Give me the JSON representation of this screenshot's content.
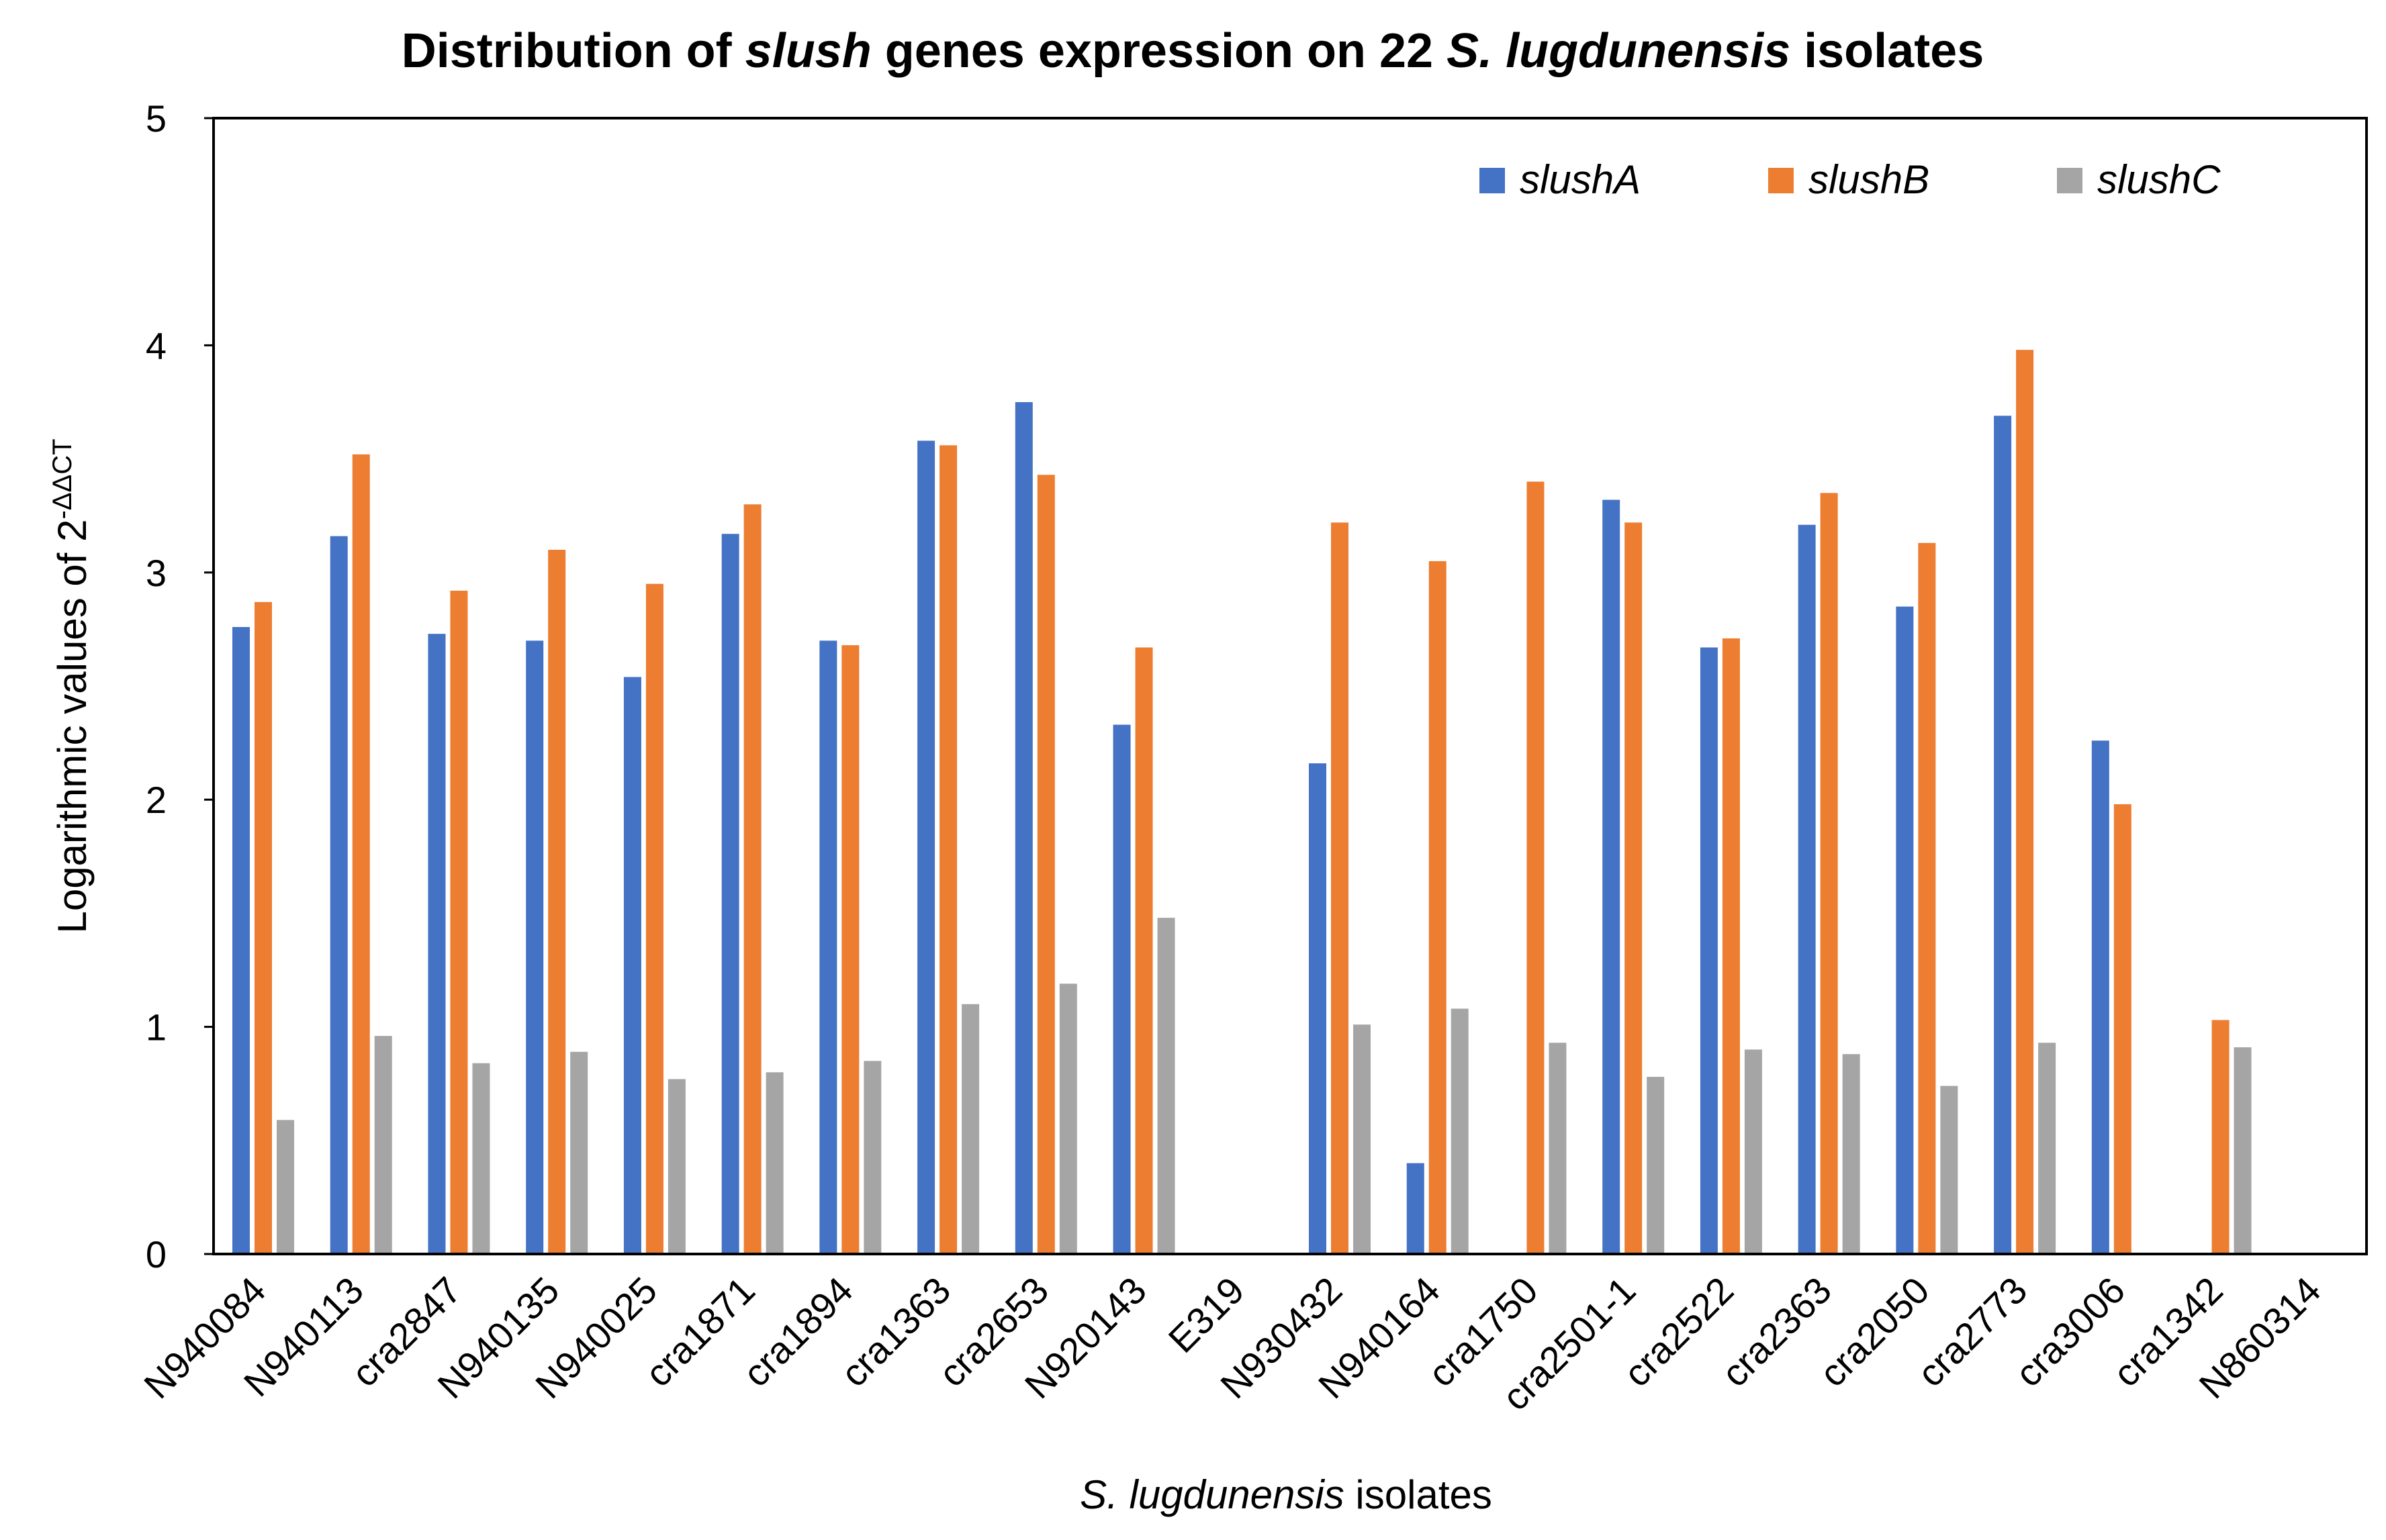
{
  "chart_data": {
    "type": "bar",
    "title": {
      "parts": [
        {
          "text": "Distribution of ",
          "italic": false
        },
        {
          "text": "slush",
          "italic": true
        },
        {
          "text": " genes expression on 22 ",
          "italic": false
        },
        {
          "text": "S. lugdunensis",
          "italic": true
        },
        {
          "text": " isolates",
          "italic": false
        }
      ]
    },
    "xlabel": {
      "parts": [
        {
          "text": "S. lugdunensis",
          "italic": true
        },
        {
          "text": " isolates",
          "italic": false
        }
      ]
    },
    "ylabel": {
      "main": "Logarithmic values of 2",
      "superscript": "-ΔΔCT"
    },
    "ylim": [
      0,
      5
    ],
    "yticks": [
      0,
      1,
      2,
      3,
      4,
      5
    ],
    "legend_position": "top-right",
    "categories": [
      "N940084",
      "N940113",
      "cra2847",
      "N940135",
      "N940025",
      "cra1871",
      "cra1894",
      "cra1363",
      "cra2653",
      "N920143",
      "E319",
      "N930432",
      "N940164",
      "cra1750",
      "cra2501-1",
      "cra2522",
      "cra2363",
      "cra2050",
      "cra2773",
      "cra3006",
      "cra1342",
      "N860314"
    ],
    "series": [
      {
        "name": "slushA",
        "color": "#4472C4",
        "values": [
          2.76,
          3.16,
          2.73,
          2.7,
          2.54,
          3.17,
          2.7,
          3.58,
          3.75,
          2.33,
          0,
          2.16,
          0.4,
          0,
          3.32,
          2.67,
          3.21,
          2.85,
          3.69,
          2.26,
          0,
          0
        ]
      },
      {
        "name": "slushB",
        "color": "#ED7D31",
        "values": [
          2.87,
          3.52,
          2.92,
          3.1,
          2.95,
          3.3,
          2.68,
          3.56,
          3.43,
          2.67,
          0,
          3.22,
          3.05,
          3.4,
          3.22,
          2.71,
          3.35,
          3.13,
          3.98,
          1.98,
          1.03,
          0
        ]
      },
      {
        "name": "slushC",
        "color": "#A5A5A5",
        "values": [
          0.59,
          0.96,
          0.84,
          0.89,
          0.77,
          0.8,
          0.85,
          1.1,
          1.19,
          1.48,
          0,
          1.01,
          1.08,
          0.93,
          0.78,
          0.9,
          0.88,
          0.74,
          0.93,
          0,
          0.91,
          0
        ]
      }
    ]
  }
}
